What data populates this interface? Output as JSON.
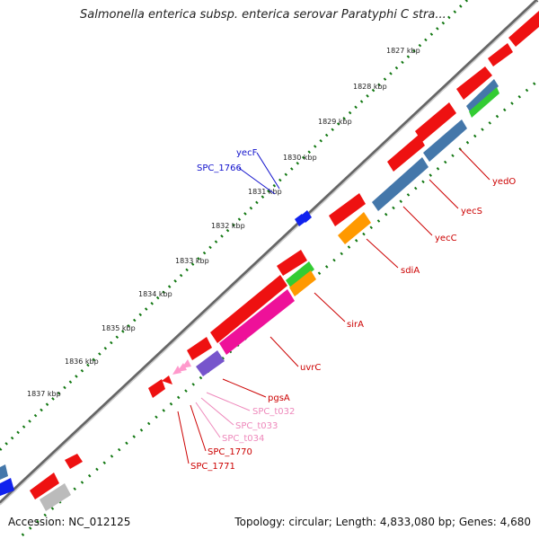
{
  "title": "Salmonella enterica subsp. enterica serovar Paratyphi C stra...",
  "footer": {
    "accession": "Accession: NC_012125",
    "summary": "Topology: circular; Length: 4,833,080 bp; Genes: 4,680"
  },
  "colors": {
    "gene_red": "#ee1111",
    "gene_orange": "#ff9900",
    "gene_green": "#33cc33",
    "gene_steelblue": "#4477aa",
    "gene_magenta": "#ee1199",
    "gene_purple": "#7755cc",
    "gene_pink": "#ff99cc",
    "gene_blue": "#1122ee",
    "gene_gray": "#bbbbbb",
    "backbone": "#888888",
    "tick_dots": "#117711",
    "label_red": "#cc0000",
    "label_pink": "#ee88bb",
    "label_blue": "#1111cc"
  },
  "scale_ticks": [
    "1827 kbp",
    "1828 kbp",
    "1829 kbp",
    "1830 kbp",
    "1831 kbp",
    "1832 kbp",
    "1833 kbp",
    "1834 kbp",
    "1835 kbp",
    "1836 kbp",
    "1837 kbp"
  ],
  "gene_labels": {
    "yedO": "yedO",
    "yecS": "yecS",
    "yecC": "yecC",
    "sdiA": "sdiA",
    "sirA": "sirA",
    "uvrC": "uvrC",
    "pgsA": "pgsA",
    "SPC_t032": "SPC_t032",
    "SPC_t033": "SPC_t033",
    "SPC_t034": "SPC_t034",
    "SPC_1770": "SPC_1770",
    "SPC_1771": "SPC_1771",
    "yecF": "yecF",
    "SPC_1766": "SPC_1766"
  }
}
